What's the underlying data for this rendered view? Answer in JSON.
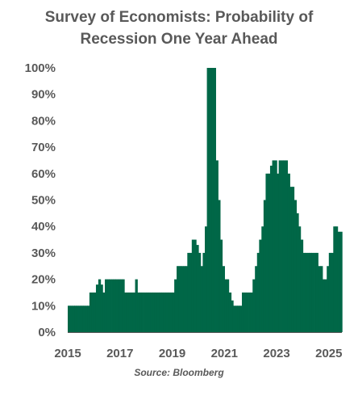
{
  "chart_data": {
    "type": "bar",
    "title": "Survey of Economists:  Probability  of\nRecession One Year Ahead",
    "source": "Source: Bloomberg",
    "x_unit": "year",
    "y_unit": "percent",
    "ylim": [
      0,
      100
    ],
    "xlim": [
      2015,
      2025.5
    ],
    "y_ticks": [
      "0%",
      "10%",
      "20%",
      "30%",
      "40%",
      "50%",
      "60%",
      "70%",
      "80%",
      "90%",
      "100%"
    ],
    "x_ticks": [
      "2015",
      "2017",
      "2019",
      "2021",
      "2023",
      "2025"
    ],
    "bar_color": "#006747",
    "grid": false,
    "legend": "none",
    "x": [
      2015.0,
      2015.08,
      2015.17,
      2015.25,
      2015.33,
      2015.42,
      2015.5,
      2015.58,
      2015.67,
      2015.75,
      2015.83,
      2015.92,
      2016.0,
      2016.08,
      2016.17,
      2016.25,
      2016.33,
      2016.42,
      2016.5,
      2016.58,
      2016.67,
      2016.75,
      2016.83,
      2016.92,
      2017.0,
      2017.08,
      2017.17,
      2017.25,
      2017.33,
      2017.42,
      2017.5,
      2017.58,
      2017.67,
      2017.75,
      2017.83,
      2017.92,
      2018.0,
      2018.08,
      2018.17,
      2018.25,
      2018.33,
      2018.42,
      2018.5,
      2018.58,
      2018.67,
      2018.75,
      2018.83,
      2018.92,
      2019.0,
      2019.08,
      2019.17,
      2019.25,
      2019.33,
      2019.42,
      2019.5,
      2019.58,
      2019.67,
      2019.75,
      2019.83,
      2019.92,
      2020.0,
      2020.08,
      2020.17,
      2020.25,
      2020.33,
      2020.42,
      2020.5,
      2020.58,
      2020.67,
      2020.75,
      2020.83,
      2020.92,
      2021.0,
      2021.08,
      2021.17,
      2021.25,
      2021.33,
      2021.42,
      2021.5,
      2021.58,
      2021.67,
      2021.75,
      2021.83,
      2021.92,
      2022.0,
      2022.08,
      2022.17,
      2022.25,
      2022.33,
      2022.42,
      2022.5,
      2022.58,
      2022.67,
      2022.75,
      2022.83,
      2022.92,
      2023.0,
      2023.08,
      2023.17,
      2023.25,
      2023.33,
      2023.42,
      2023.5,
      2023.58,
      2023.67,
      2023.75,
      2023.83,
      2023.92,
      2024.0,
      2024.08,
      2024.17,
      2024.25,
      2024.33,
      2024.42,
      2024.5,
      2024.58,
      2024.67,
      2024.75,
      2024.83,
      2024.92,
      2025.0,
      2025.08,
      2025.17,
      2025.25,
      2025.33,
      2025.42
    ],
    "values": [
      10,
      10,
      10,
      10,
      10,
      10,
      10,
      10,
      10,
      10,
      15,
      15,
      15,
      18,
      20,
      18,
      15,
      20,
      20,
      20,
      20,
      20,
      20,
      20,
      20,
      20,
      15,
      15,
      15,
      15,
      15,
      20,
      15,
      15,
      15,
      15,
      15,
      15,
      15,
      15,
      15,
      15,
      15,
      15,
      15,
      15,
      15,
      15,
      15,
      20,
      25,
      25,
      25,
      25,
      25,
      30,
      30,
      35,
      35,
      33,
      30,
      25,
      30,
      40,
      100,
      100,
      100,
      100,
      65,
      50,
      35,
      25,
      20,
      20,
      15,
      12,
      10,
      10,
      10,
      10,
      15,
      15,
      15,
      15,
      15,
      20,
      25,
      30,
      35,
      40,
      50,
      60,
      60,
      63,
      65,
      65,
      60,
      65,
      65,
      65,
      65,
      60,
      55,
      55,
      50,
      45,
      40,
      35,
      30,
      30,
      30,
      30,
      30,
      30,
      30,
      25,
      25,
      20,
      20,
      25,
      30,
      30,
      40,
      40,
      38,
      38
    ]
  }
}
